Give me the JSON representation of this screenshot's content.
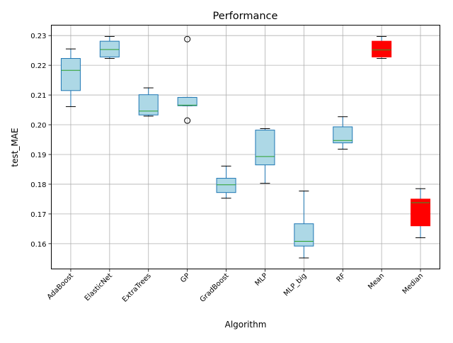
{
  "chart_data": {
    "type": "box",
    "title": "Performance",
    "xlabel": "Algorithm",
    "ylabel": "test_MAE",
    "ylim": [
      0.1515,
      0.2335
    ],
    "yticks": [
      0.16,
      0.17,
      0.18,
      0.19,
      0.2,
      0.21,
      0.22,
      0.23
    ],
    "ytick_labels": [
      "0.16",
      "0.17",
      "0.18",
      "0.19",
      "0.20",
      "0.21",
      "0.22",
      "0.23"
    ],
    "grid": true,
    "categories": [
      "AdaBoost",
      "ElasticNet",
      "ExtraTrees",
      "GP",
      "GradBoost",
      "MLP",
      "MLP_big",
      "RF",
      "Mean",
      "Median"
    ],
    "boxes": [
      {
        "name": "AdaBoost",
        "whislo": 0.2061,
        "q1": 0.2115,
        "med": 0.2183,
        "q3": 0.2223,
        "whishi": 0.2255,
        "fliers": [],
        "color": "#add8e6"
      },
      {
        "name": "ElasticNet",
        "whislo": 0.2223,
        "q1": 0.2228,
        "med": 0.2253,
        "q3": 0.2281,
        "whishi": 0.2297,
        "fliers": [],
        "color": "#add8e6"
      },
      {
        "name": "ExtraTrees",
        "whislo": 0.2029,
        "q1": 0.2033,
        "med": 0.2046,
        "q3": 0.2101,
        "whishi": 0.2124,
        "fliers": [],
        "color": "#add8e6"
      },
      {
        "name": "GP",
        "whislo": 0.2064,
        "q1": 0.2064,
        "med": 0.2066,
        "q3": 0.2092,
        "whishi": 0.2092,
        "fliers": [
          0.2288,
          0.2014
        ],
        "color": "#add8e6"
      },
      {
        "name": "GradBoost",
        "whislo": 0.1753,
        "q1": 0.1772,
        "med": 0.1798,
        "q3": 0.182,
        "whishi": 0.1861,
        "fliers": [],
        "color": "#add8e6"
      },
      {
        "name": "MLP",
        "whislo": 0.1803,
        "q1": 0.1865,
        "med": 0.1893,
        "q3": 0.1982,
        "whishi": 0.1987,
        "fliers": [],
        "color": "#add8e6"
      },
      {
        "name": "MLP_big",
        "whislo": 0.1552,
        "q1": 0.1592,
        "med": 0.1608,
        "q3": 0.1667,
        "whishi": 0.1777,
        "fliers": [],
        "color": "#add8e6"
      },
      {
        "name": "RF",
        "whislo": 0.1918,
        "q1": 0.1939,
        "med": 0.1947,
        "q3": 0.1993,
        "whishi": 0.2027,
        "fliers": [],
        "color": "#add8e6"
      },
      {
        "name": "Mean",
        "whislo": 0.2223,
        "q1": 0.2228,
        "med": 0.2252,
        "q3": 0.2281,
        "whishi": 0.2297,
        "fliers": [],
        "color": "#ff0000"
      },
      {
        "name": "Median",
        "whislo": 0.162,
        "q1": 0.166,
        "med": 0.1738,
        "q3": 0.175,
        "whishi": 0.1785,
        "fliers": [],
        "color": "#ff0000"
      }
    ],
    "colors": {
      "box_edge": "#1f77b4",
      "median": "#2ca02c",
      "whisker": "#1f77b4",
      "cap": "#000000",
      "grid": "#b0b0b0"
    }
  }
}
